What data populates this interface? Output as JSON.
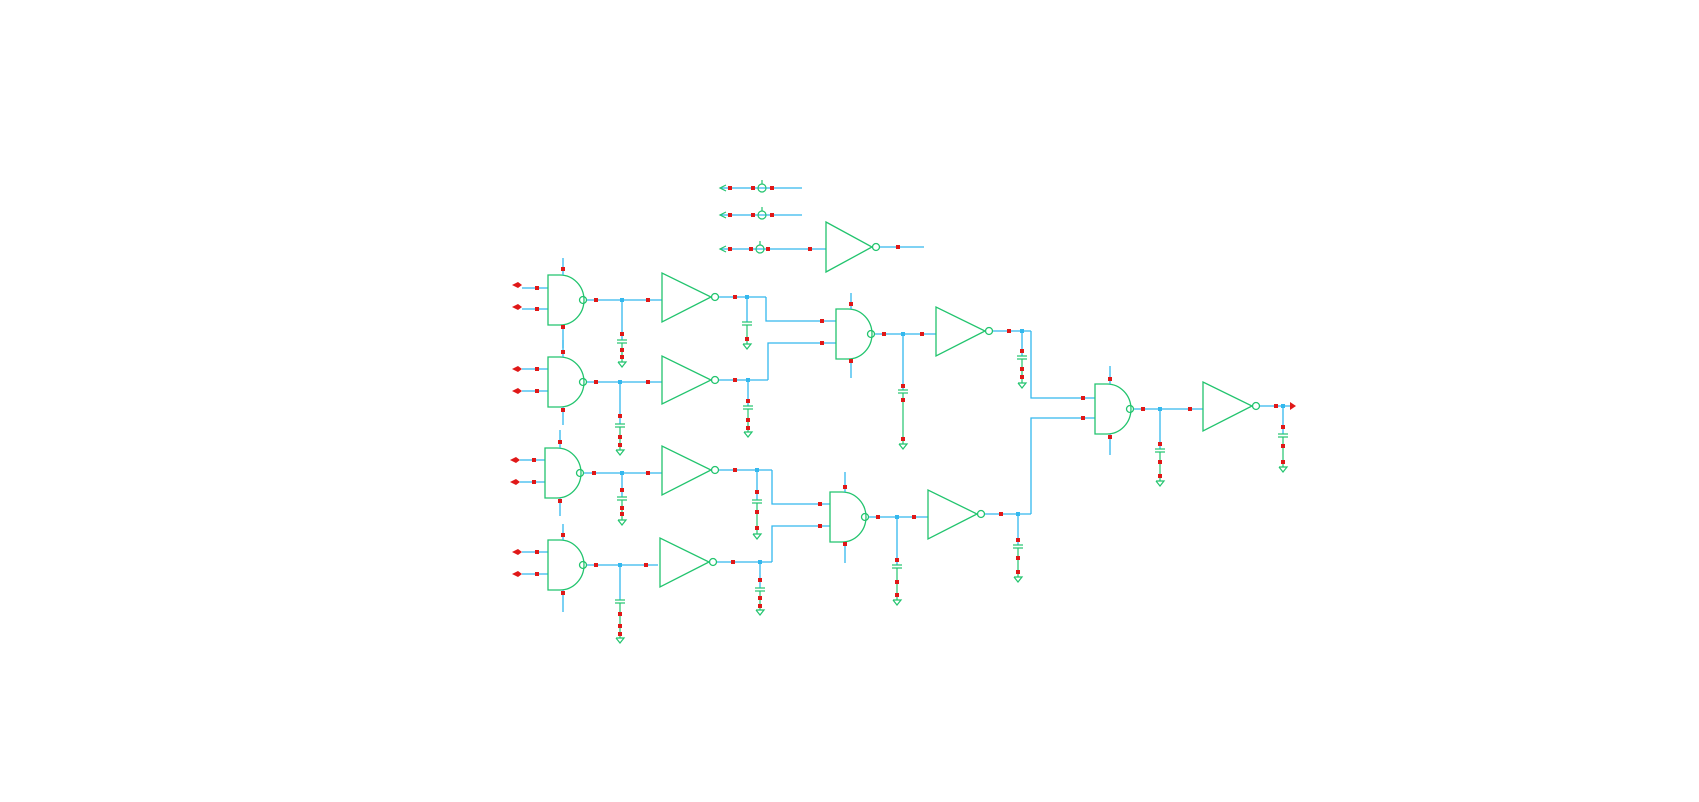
{
  "app": {
    "background": "#ffffff"
  },
  "colors": {
    "wire": "#33b8ee",
    "gate": "#22c46e",
    "pin": "#e01818",
    "junction": "#33b8ee"
  },
  "icons": {
    "input_port": "input-port-arrow-icon",
    "output_port": "output-port-arrow-icon",
    "nand_gate": "nand-gate-icon",
    "inverter": "inverter-icon",
    "capacitor": "capacitor-icon",
    "ground": "ground-icon",
    "power_supply": "dc-source-icon"
  },
  "circuit": {
    "description_visible_text": [],
    "stage1_nand_count": 4,
    "stage2_nand_count": 2,
    "stage3_nand_count": 1,
    "buffer_inverter_count": 7,
    "supply_sources": 3,
    "primary_inputs": 8,
    "primary_outputs": 1
  }
}
